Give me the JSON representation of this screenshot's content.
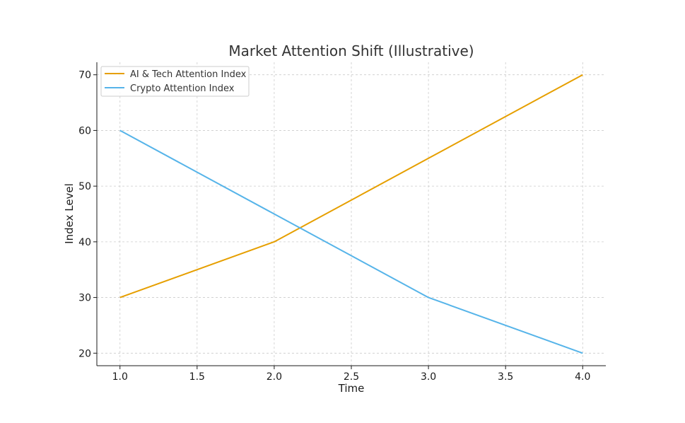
{
  "chart_data": {
    "type": "line",
    "title": "Market Attention Shift (Illustrative)",
    "xlabel": "Time",
    "ylabel": "Index Level",
    "x": [
      1,
      2,
      3,
      4
    ],
    "series": [
      {
        "name": "AI & Tech Attention Index",
        "values": [
          30,
          40,
          55,
          70
        ],
        "color": "#E69F00"
      },
      {
        "name": "Crypto Attention Index",
        "values": [
          60,
          45,
          30,
          20
        ],
        "color": "#56B4E9"
      }
    ],
    "xlim": [
      0.85,
      4.15
    ],
    "ylim": [
      17.75,
      72.25
    ],
    "xticks": [
      1.0,
      1.5,
      2.0,
      2.5,
      3.0,
      3.5,
      4.0
    ],
    "xtick_labels": [
      "1.0",
      "1.5",
      "2.0",
      "2.5",
      "3.0",
      "3.5",
      "4.0"
    ],
    "yticks": [
      20,
      30,
      40,
      50,
      60,
      70
    ],
    "ytick_labels": [
      "20",
      "30",
      "40",
      "50",
      "60",
      "70"
    ],
    "grid": true,
    "legend_position": "top-left"
  }
}
